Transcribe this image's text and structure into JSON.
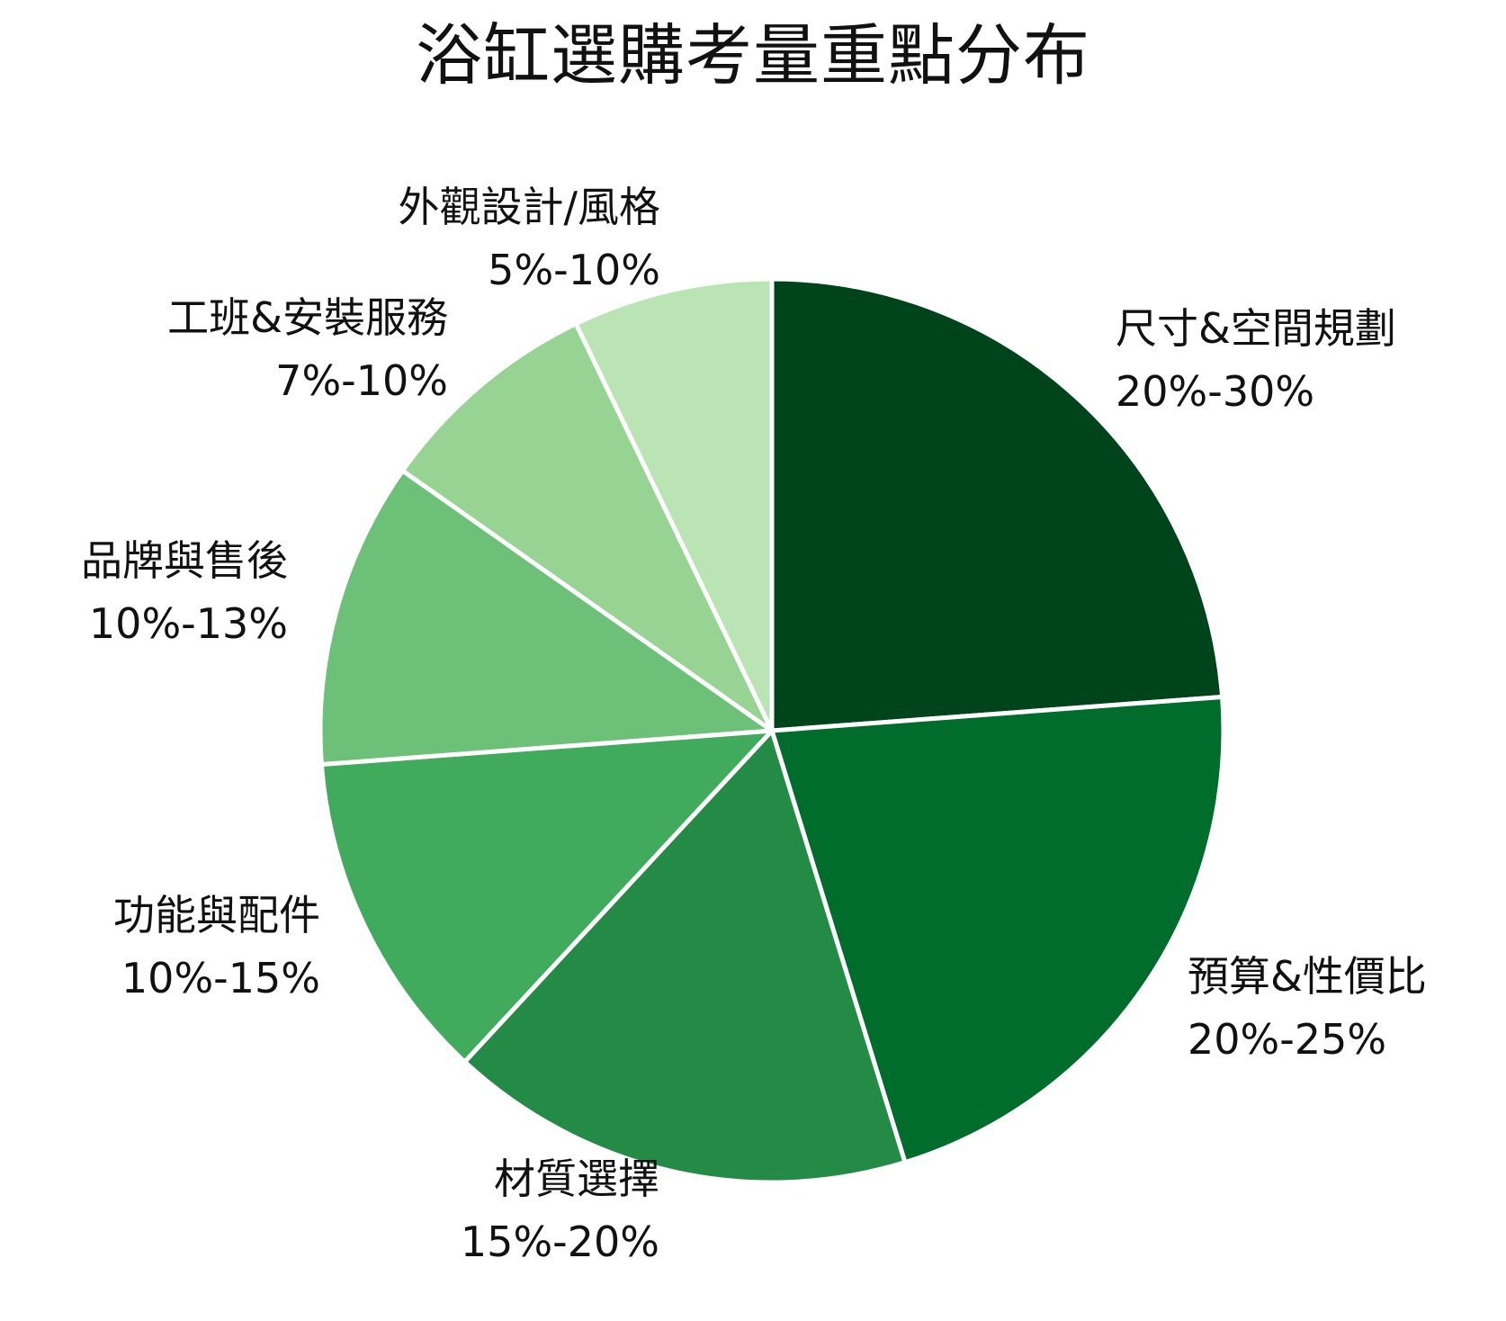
{
  "chart_data": {
    "type": "pie",
    "title": "浴缸選購考量重點分布",
    "slices": [
      {
        "label": "尺寸&空間規劃",
        "range": "20%-30%",
        "value": 25.0,
        "color": "#00441b"
      },
      {
        "label": "預算&性價比",
        "range": "20%-25%",
        "value": 22.5,
        "color": "#006d2c"
      },
      {
        "label": "材質選擇",
        "range": "15%-20%",
        "value": 17.5,
        "color": "#238b45"
      },
      {
        "label": "功能與配件",
        "range": "10%-15%",
        "value": 12.5,
        "color": "#41ab5d"
      },
      {
        "label": "品牌與售後",
        "range": "10%-13%",
        "value": 11.5,
        "color": "#6cc077"
      },
      {
        "label": "工班&安裝服務",
        "range": "7%-10%",
        "value": 8.5,
        "color": "#97d494"
      },
      {
        "label": "外觀設計/風格",
        "range": "5%-10%",
        "value": 7.5,
        "color": "#bae4b3"
      }
    ],
    "start_angle": "12 o'clock",
    "direction": "clockwise",
    "legend": "none"
  }
}
